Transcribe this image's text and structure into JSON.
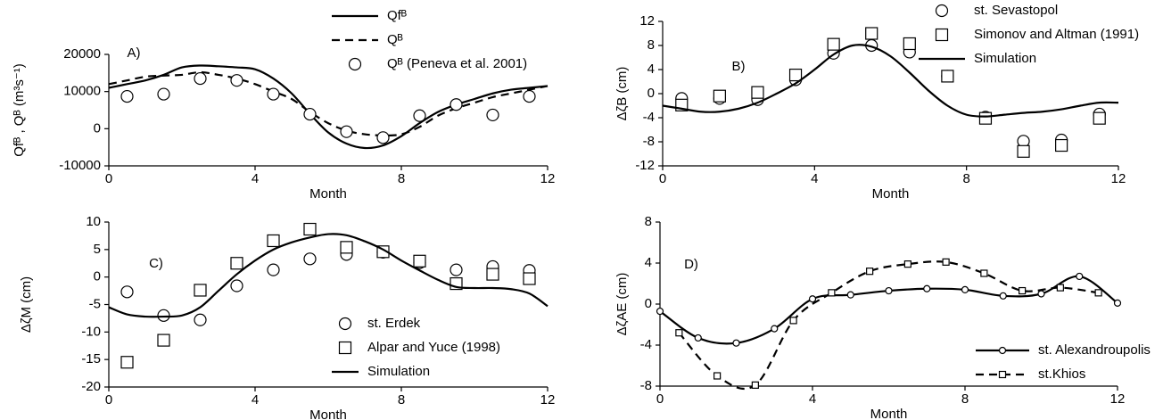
{
  "chart_data": [
    {
      "type": "line",
      "label": "A)",
      "xlabel": "Month",
      "ylabel": "Qfᴮ , Qᴮ   (m³s⁻¹)",
      "xlim": [
        0,
        12
      ],
      "xticks": [
        0,
        4,
        8,
        12
      ],
      "ylim": [
        -10000,
        20000
      ],
      "yticks": [
        -10000,
        0,
        10000,
        20000
      ],
      "series": [
        {
          "name": "Qfᴮ",
          "style": "solid",
          "color": "#000000",
          "x": [
            0,
            0.5,
            1,
            1.5,
            2,
            2.5,
            3,
            3.5,
            4,
            4.5,
            5,
            5.5,
            6,
            6.5,
            7,
            7.5,
            8,
            8.5,
            9,
            9.5,
            10,
            10.5,
            11,
            11.5,
            12
          ],
          "values": [
            11000,
            12000,
            13000,
            14500,
            16500,
            17000,
            16800,
            16500,
            16000,
            13500,
            9500,
            4000,
            -1000,
            -4000,
            -5200,
            -4500,
            -2000,
            1500,
            4500,
            6500,
            8000,
            9500,
            10500,
            11000,
            11500
          ]
        },
        {
          "name": "Qᴮ",
          "style": "dashed",
          "color": "#000000",
          "x": [
            0,
            0.5,
            1,
            1.5,
            2,
            2.5,
            3,
            3.5,
            4,
            4.5,
            5,
            5.5,
            6,
            6.5,
            7,
            7.5,
            8,
            8.5,
            9,
            9.5,
            10,
            10.5,
            11,
            11.5,
            12
          ],
          "values": [
            12000,
            13000,
            14000,
            14300,
            14500,
            15200,
            14500,
            13500,
            12000,
            10000,
            8000,
            4500,
            1500,
            -500,
            -1500,
            -1800,
            -1500,
            500,
            3500,
            5500,
            7000,
            8500,
            9500,
            10500,
            11500
          ]
        },
        {
          "name": "Qᴮ (Peneva et al. 2001)",
          "style": "circle",
          "color": "#000000",
          "x": [
            0.5,
            1.5,
            2.5,
            3.5,
            4.5,
            5.5,
            6.5,
            7.5,
            8.5,
            9.5,
            10.5,
            11.5
          ],
          "values": [
            8700,
            9300,
            13500,
            13000,
            9300,
            3900,
            -800,
            -2400,
            3500,
            6500,
            3700,
            8700
          ]
        }
      ]
    },
    {
      "type": "line",
      "label": "B)",
      "xlabel": "Month",
      "ylabel": "ΔζB   (cm)",
      "xlim": [
        0,
        12
      ],
      "xticks": [
        0,
        4,
        8,
        12
      ],
      "ylim": [
        -12,
        12
      ],
      "yticks": [
        -12,
        -8,
        -4,
        0,
        4,
        8,
        12
      ],
      "series": [
        {
          "name": "st. Sevastopol",
          "style": "circle",
          "color": "#000000",
          "x": [
            0.5,
            1.5,
            2.5,
            3.5,
            4.5,
            5.5,
            6.5,
            7.5,
            8.5,
            9.5,
            10.5,
            11.5
          ],
          "values": [
            -0.8,
            -0.8,
            -1,
            2.3,
            6.7,
            8,
            6.9,
            2.9,
            -3.9,
            -7.9,
            -7.7,
            -3.4
          ]
        },
        {
          "name": "Simonov and Altman (1991)",
          "style": "square",
          "color": "#000000",
          "x": [
            0.5,
            1.5,
            2.5,
            3.5,
            4.5,
            5.5,
            6.5,
            7.5,
            8.5,
            9.5,
            10.5,
            11.5
          ],
          "values": [
            -1.9,
            -0.4,
            0.2,
            3.1,
            8.2,
            10,
            8.3,
            2.9,
            -4.1,
            -9.6,
            -8.6,
            -4.1
          ]
        },
        {
          "name": "Simulation",
          "style": "solid",
          "color": "#000000",
          "x": [
            0,
            0.5,
            1,
            1.5,
            2,
            2.5,
            3,
            3.5,
            4,
            4.5,
            5,
            5.5,
            6,
            6.5,
            7,
            7.5,
            8,
            8.5,
            9,
            9.5,
            10,
            10.5,
            11,
            11.5,
            12
          ],
          "values": [
            -2,
            -2.5,
            -3,
            -3,
            -2.5,
            -1.5,
            0,
            1.7,
            4,
            6.5,
            8,
            7.8,
            6.2,
            3.5,
            0.5,
            -2,
            -3.5,
            -3.8,
            -3.5,
            -3.2,
            -3,
            -2.6,
            -2,
            -1.5,
            -1.5
          ]
        }
      ]
    },
    {
      "type": "line",
      "label": "C)",
      "xlabel": "Month",
      "ylabel": "ΔζM   (cm)",
      "xlim": [
        0,
        12
      ],
      "xticks": [
        0,
        4,
        8,
        12
      ],
      "ylim": [
        -20,
        10
      ],
      "yticks": [
        -20,
        -15,
        -10,
        -5,
        0,
        5,
        10
      ],
      "series": [
        {
          "name": "st. Erdek",
          "style": "circle",
          "color": "#000000",
          "x": [
            0.5,
            1.5,
            2.5,
            3.5,
            4.5,
            5.5,
            6.5,
            7.5,
            8.5,
            9.5,
            10.5,
            11.5
          ],
          "values": [
            -2.7,
            -7,
            -7.8,
            -1.6,
            1.3,
            3.3,
            4.1,
            4.5,
            2.6,
            1.3,
            1.9,
            1.2
          ]
        },
        {
          "name": "Alpar and Yuce (1998)",
          "style": "square",
          "color": "#000000",
          "x": [
            0.5,
            1.5,
            2.5,
            3.5,
            4.5,
            5.5,
            6.5,
            7.5,
            8.5,
            9.5,
            10.5,
            11.5
          ],
          "values": [
            -15.5,
            -11.5,
            -2.4,
            2.5,
            6.6,
            8.7,
            5.4,
            4.6,
            2.9,
            -1.2,
            0.5,
            -0.3
          ]
        },
        {
          "name": "Simulation",
          "style": "solid",
          "color": "#000000",
          "x": [
            0,
            0.5,
            1,
            1.5,
            2,
            2.5,
            3,
            3.5,
            4,
            4.5,
            5,
            5.5,
            6,
            6.5,
            7,
            7.5,
            8,
            8.5,
            9,
            9.5,
            10,
            10.5,
            11,
            11.5,
            12
          ],
          "values": [
            -5.5,
            -6.8,
            -7.2,
            -7.2,
            -7,
            -5.5,
            -2.5,
            0.5,
            3,
            5,
            6.3,
            7.2,
            7.8,
            7.6,
            6.5,
            5,
            3,
            1.2,
            -0.5,
            -1.8,
            -2,
            -2,
            -2.2,
            -3,
            -5.3
          ]
        }
      ]
    },
    {
      "type": "line",
      "label": "D)",
      "xlabel": "Month",
      "ylabel": "ΔζAE   (cm)",
      "xlim": [
        0,
        12
      ],
      "xticks": [
        0,
        4,
        8,
        12
      ],
      "ylim": [
        -8,
        8
      ],
      "yticks": [
        -8,
        -4,
        0,
        4,
        8
      ],
      "series": [
        {
          "name": "st. Alexandroupolis",
          "style": "solid-circle",
          "color": "#000000",
          "x": [
            0,
            1,
            2,
            3,
            4,
            5,
            6,
            7,
            8,
            9,
            10,
            11,
            12
          ],
          "values": [
            -0.7,
            -3.3,
            -3.8,
            -2.4,
            0.5,
            0.9,
            1.3,
            1.5,
            1.4,
            0.8,
            1.0,
            2.7,
            0.1
          ]
        },
        {
          "name": "st.Khios",
          "style": "dashed-square",
          "color": "#000000",
          "x": [
            0.5,
            1.5,
            2.5,
            3.5,
            4.5,
            5.5,
            6.5,
            7.5,
            8.5,
            9.5,
            10.5,
            11.5
          ],
          "values": [
            -2.8,
            -7,
            -7.9,
            -1.6,
            1.1,
            3.2,
            3.9,
            4.1,
            3.0,
            1.3,
            1.6,
            1.1
          ]
        }
      ]
    }
  ]
}
